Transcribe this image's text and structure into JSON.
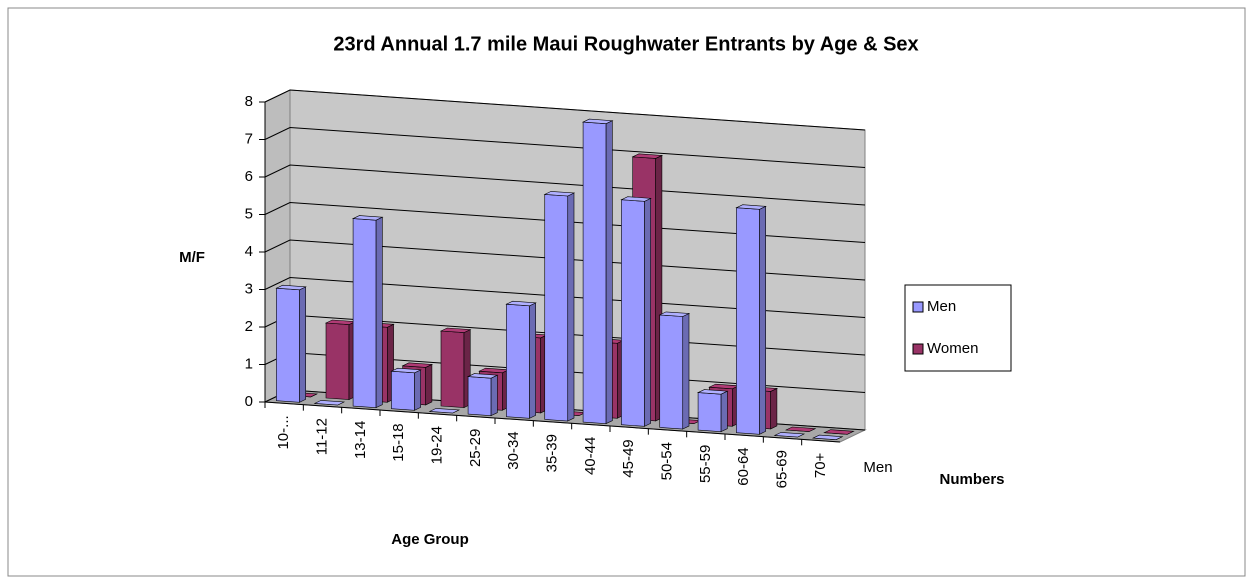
{
  "chart_data": {
    "type": "bar3d",
    "title": "23rd Annual 1.7 mile Maui Roughwater Entrants by Age & Sex",
    "y_label": "M/F",
    "x_label": "Age Group",
    "z_label": "Numbers",
    "z_ticks": [
      "Men"
    ],
    "categories": [
      "10-...",
      "11-12",
      "13-14",
      "15-18",
      "19-24",
      "25-29",
      "30-34",
      "35-39",
      "40-44",
      "45-49",
      "50-54",
      "55-59",
      "60-64",
      "65-69",
      "70+"
    ],
    "series": [
      {
        "name": "Men",
        "color": "#9999ff",
        "values": [
          3,
          0,
          5,
          1,
          0,
          1,
          3,
          6,
          8,
          6,
          3,
          1,
          6,
          0,
          0
        ]
      },
      {
        "name": "Women",
        "color": "#993366",
        "values": [
          0,
          2,
          2,
          1,
          2,
          1,
          2,
          0,
          2,
          7,
          0,
          1,
          1,
          0,
          0
        ]
      }
    ],
    "ylim": [
      0,
      8
    ],
    "yticks": [
      0,
      1,
      2,
      3,
      4,
      5,
      6,
      7,
      8
    ],
    "grid": true,
    "legend": "right"
  }
}
